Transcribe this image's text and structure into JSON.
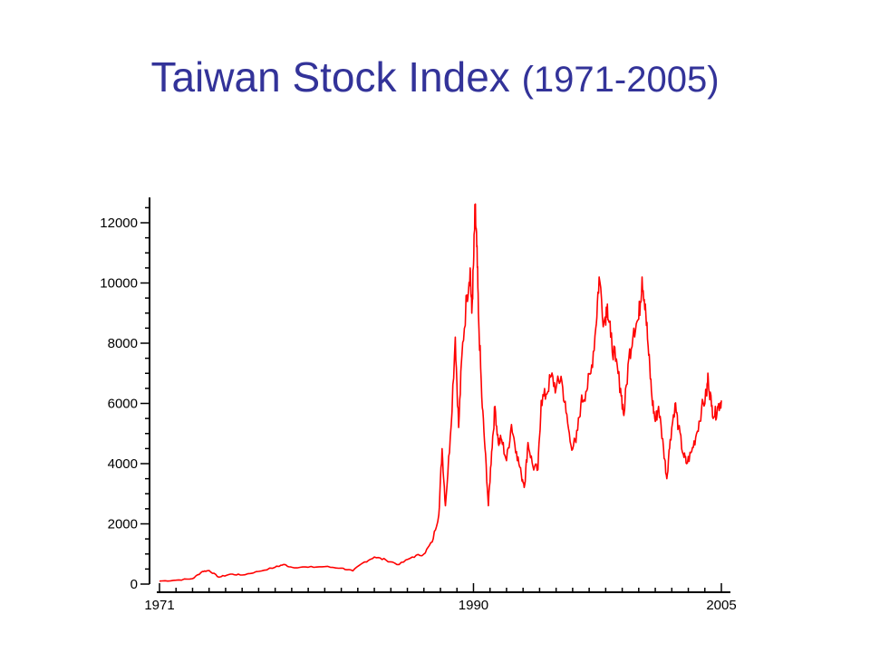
{
  "slide": {
    "title_main": "Taiwan Stock Index",
    "title_years": "(1971-2005)"
  },
  "colors": {
    "title": "#333399",
    "series": "#ff0000",
    "axis": "#000000"
  },
  "chart_data": {
    "type": "line",
    "title": "",
    "xlabel": "",
    "ylabel": "",
    "xlim": [
      1971,
      2005
    ],
    "ylim": [
      0,
      12800
    ],
    "x_ticks": [
      1971,
      1990,
      2005
    ],
    "y_ticks": [
      0,
      2000,
      4000,
      6000,
      8000,
      10000,
      12000
    ],
    "grid": false,
    "series": [
      {
        "points": [
          [
            1971.0,
            100
          ],
          [
            1972.0,
            130
          ],
          [
            1973.0,
            180
          ],
          [
            1973.6,
            420
          ],
          [
            1974.0,
            450
          ],
          [
            1974.6,
            230
          ],
          [
            1975.3,
            330
          ],
          [
            1976.0,
            300
          ],
          [
            1977.0,
            420
          ],
          [
            1978.0,
            560
          ],
          [
            1978.5,
            650
          ],
          [
            1979.0,
            560
          ],
          [
            1980.0,
            560
          ],
          [
            1981.0,
            580
          ],
          [
            1982.0,
            530
          ],
          [
            1982.7,
            440
          ],
          [
            1983.3,
            700
          ],
          [
            1984.0,
            900
          ],
          [
            1984.7,
            800
          ],
          [
            1985.5,
            650
          ],
          [
            1986.3,
            900
          ],
          [
            1987.0,
            1000
          ],
          [
            1987.5,
            1400
          ],
          [
            1987.9,
            2300
          ],
          [
            1988.1,
            4500
          ],
          [
            1988.3,
            2600
          ],
          [
            1988.6,
            4900
          ],
          [
            1988.9,
            8200
          ],
          [
            1989.1,
            5200
          ],
          [
            1989.3,
            7600
          ],
          [
            1989.6,
            9600
          ],
          [
            1989.8,
            10500
          ],
          [
            1989.9,
            9000
          ],
          [
            1990.0,
            10600
          ],
          [
            1990.1,
            12400
          ],
          [
            1990.2,
            11200
          ],
          [
            1990.3,
            9000
          ],
          [
            1990.5,
            6200
          ],
          [
            1990.7,
            4500
          ],
          [
            1990.9,
            2600
          ],
          [
            1991.1,
            4400
          ],
          [
            1991.3,
            5900
          ],
          [
            1991.5,
            4700
          ],
          [
            1991.7,
            4800
          ],
          [
            1992.0,
            4100
          ],
          [
            1992.3,
            5300
          ],
          [
            1992.6,
            4400
          ],
          [
            1992.9,
            3600
          ],
          [
            1993.1,
            3300
          ],
          [
            1993.3,
            4700
          ],
          [
            1993.6,
            3900
          ],
          [
            1993.9,
            3800
          ],
          [
            1994.1,
            6100
          ],
          [
            1994.4,
            6300
          ],
          [
            1994.7,
            6900
          ],
          [
            1995.0,
            6500
          ],
          [
            1995.3,
            6900
          ],
          [
            1995.6,
            5700
          ],
          [
            1995.9,
            4600
          ],
          [
            1996.2,
            4700
          ],
          [
            1996.5,
            6000
          ],
          [
            1996.8,
            6400
          ],
          [
            1997.1,
            7000
          ],
          [
            1997.4,
            8500
          ],
          [
            1997.6,
            10200
          ],
          [
            1997.9,
            8700
          ],
          [
            1998.1,
            9300
          ],
          [
            1998.3,
            8200
          ],
          [
            1998.6,
            7400
          ],
          [
            1998.9,
            6500
          ],
          [
            1999.1,
            5600
          ],
          [
            1999.4,
            7500
          ],
          [
            1999.7,
            8500
          ],
          [
            2000.0,
            8800
          ],
          [
            2000.2,
            10200
          ],
          [
            2000.4,
            9300
          ],
          [
            2000.6,
            7600
          ],
          [
            2000.8,
            6200
          ],
          [
            2001.0,
            5400
          ],
          [
            2001.2,
            5900
          ],
          [
            2001.5,
            4500
          ],
          [
            2001.7,
            3500
          ],
          [
            2001.9,
            4800
          ],
          [
            2002.2,
            6000
          ],
          [
            2002.4,
            5200
          ],
          [
            2002.7,
            4300
          ],
          [
            2002.9,
            4000
          ],
          [
            2003.2,
            4400
          ],
          [
            2003.5,
            5000
          ],
          [
            2003.8,
            5800
          ],
          [
            2004.1,
            6300
          ],
          [
            2004.2,
            6900
          ],
          [
            2004.4,
            5900
          ],
          [
            2004.6,
            5600
          ],
          [
            2004.8,
            5900
          ],
          [
            2005.0,
            6100
          ]
        ]
      }
    ]
  }
}
